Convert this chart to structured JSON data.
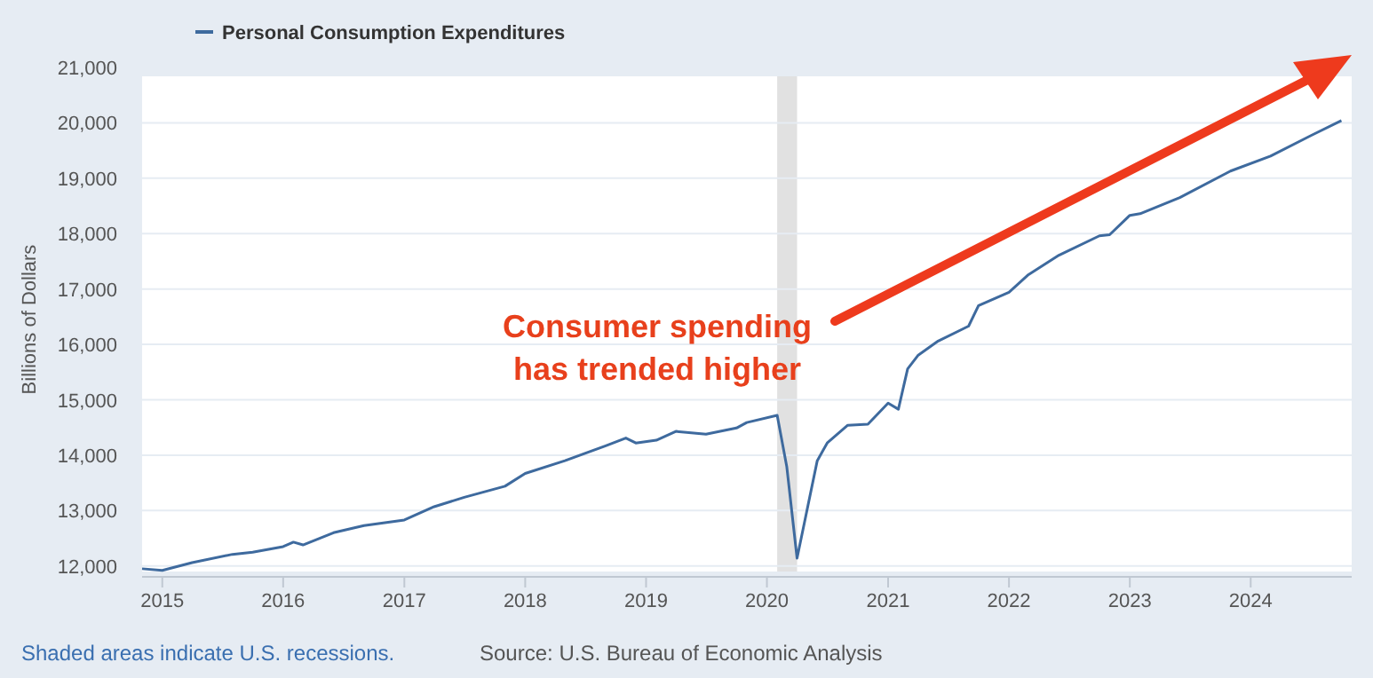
{
  "chart_data": {
    "type": "line",
    "ylabel": "Billions of Dollars",
    "legend": "top left",
    "grid": "y",
    "marker": "none",
    "line_style": "solid",
    "x": [
      "2014-11",
      "2015-01",
      "2015-04",
      "2015-08",
      "2015-10",
      "2016-01",
      "2016-02",
      "2016-03",
      "2016-06",
      "2016-09",
      "2017-01",
      "2017-04",
      "2017-07",
      "2017-11",
      "2018-01",
      "2018-05",
      "2018-09",
      "2018-11",
      "2018-12",
      "2019-02",
      "2019-04",
      "2019-07",
      "2019-10",
      "2019-11",
      "2020-02",
      "2020-03",
      "2020-04",
      "2020-06",
      "2020-07",
      "2020-09",
      "2020-11",
      "2021-01",
      "2021-02",
      "2021-03",
      "2021-04",
      "2021-06",
      "2021-09",
      "2021-10",
      "2022-01",
      "2022-03",
      "2022-06",
      "2022-10",
      "2022-11",
      "2023-01",
      "2023-02",
      "2023-06",
      "2023-11",
      "2024-03",
      "2024-07",
      "2024-10"
    ],
    "series": [
      {
        "name": "Personal Consumption Expenditures",
        "color": "#3e6a9e",
        "values": [
          11950,
          11920,
          12060,
          12210,
          12250,
          12350,
          12430,
          12380,
          12600,
          12730,
          12830,
          13070,
          13240,
          13440,
          13670,
          13900,
          14170,
          14310,
          14220,
          14270,
          14430,
          14380,
          14490,
          14590,
          14720,
          13790,
          12140,
          13900,
          14220,
          14540,
          14560,
          14940,
          14830,
          15560,
          15800,
          16060,
          16330,
          16700,
          16940,
          17260,
          17610,
          17960,
          17980,
          18330,
          18360,
          18650,
          19130,
          19400,
          19770,
          20040
        ]
      }
    ],
    "xlim": [
      "2014-11",
      "2024-11"
    ],
    "xticks": [
      "2015",
      "2016",
      "2017",
      "2018",
      "2019",
      "2020",
      "2021",
      "2022",
      "2023",
      "2024"
    ],
    "ylim": [
      11900,
      21000
    ],
    "yticks": [
      {
        "value": 12000,
        "label": "12,000"
      },
      {
        "value": 13000,
        "label": "13,000"
      },
      {
        "value": 14000,
        "label": "14,000"
      },
      {
        "value": 15000,
        "label": "15,000"
      },
      {
        "value": 16000,
        "label": "16,000"
      },
      {
        "value": 17000,
        "label": "17,000"
      },
      {
        "value": 18000,
        "label": "18,000"
      },
      {
        "value": 19000,
        "label": "19,000"
      },
      {
        "value": 20000,
        "label": "20,000"
      },
      {
        "value": 21000,
        "label": "21,000"
      }
    ],
    "bands": [
      {
        "axis": "x",
        "from": "2020-02",
        "to": "2020-04",
        "color": "#e1e1e1"
      }
    ],
    "annotations": [
      "Consumer spending\nhas trended higher",
      "Shaded areas indicate U.S. recessions.",
      "Source: U.S. Bureau of Economic Analysis"
    ]
  }
}
